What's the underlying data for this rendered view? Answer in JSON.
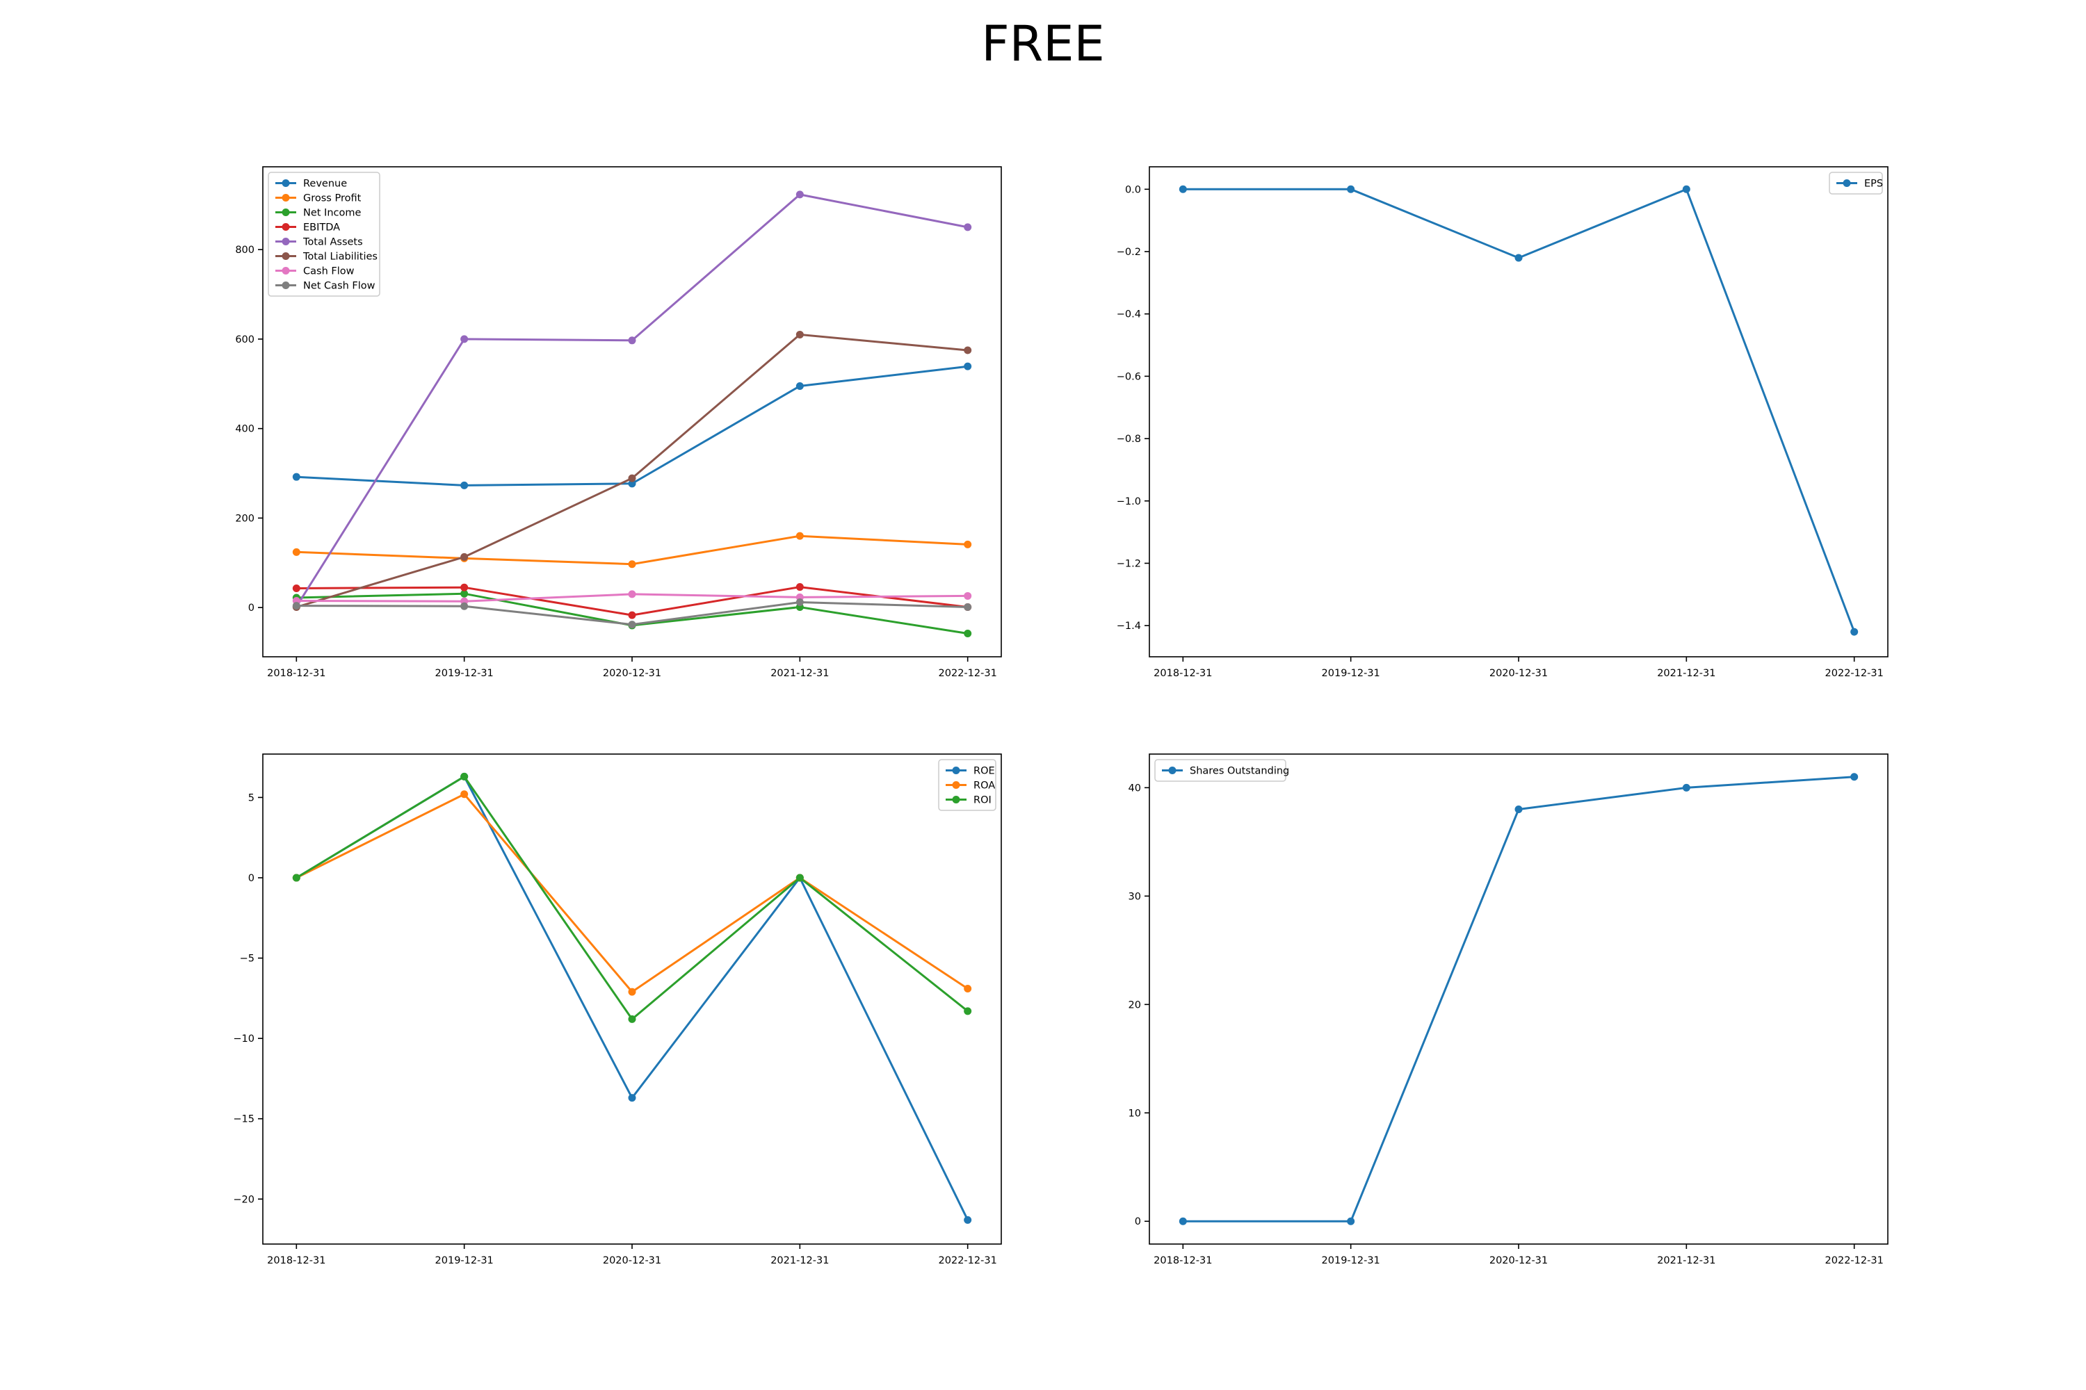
{
  "title": "FREE",
  "chart_data": [
    {
      "type": "line",
      "x": [
        "2018-12-31",
        "2019-12-31",
        "2020-12-31",
        "2021-12-31",
        "2022-12-31"
      ],
      "yticks": [
        0,
        200,
        400,
        600,
        800
      ],
      "ylim": [
        -110,
        985
      ],
      "legend_position": "upper left",
      "series": [
        {
          "name": "Revenue",
          "color": "#1f77b4",
          "values": [
            292,
            273,
            277,
            495,
            539
          ]
        },
        {
          "name": "Gross Profit",
          "color": "#ff7f0e",
          "values": [
            124,
            110,
            97,
            160,
            141
          ]
        },
        {
          "name": "Net Income",
          "color": "#2ca02c",
          "values": [
            22,
            31,
            -40,
            1,
            -58
          ]
        },
        {
          "name": "EBITDA",
          "color": "#d62728",
          "values": [
            43,
            45,
            -17,
            46,
            1
          ]
        },
        {
          "name": "Total Assets",
          "color": "#9467bd",
          "values": [
            2,
            600,
            597,
            923,
            850
          ]
        },
        {
          "name": "Total Liabilities",
          "color": "#8c564b",
          "values": [
            1,
            113,
            289,
            610,
            575
          ]
        },
        {
          "name": "Cash Flow",
          "color": "#e377c2",
          "values": [
            15,
            14,
            30,
            23,
            26
          ]
        },
        {
          "name": "Net Cash Flow",
          "color": "#7f7f7f",
          "values": [
            4,
            3,
            -38,
            12,
            1
          ]
        }
      ]
    },
    {
      "type": "line",
      "x": [
        "2018-12-31",
        "2019-12-31",
        "2020-12-31",
        "2021-12-31",
        "2022-12-31"
      ],
      "yticks": [
        0.0,
        -0.2,
        -0.4,
        -0.6,
        -0.8,
        -1.0,
        -1.2,
        -1.4
      ],
      "ytick_labels": [
        "0.0",
        "−0.2",
        "−0.4",
        "−0.6",
        "−0.8",
        "−1.0",
        "−1.2",
        "−1.4"
      ],
      "ylim": [
        -1.5,
        0.072
      ],
      "legend_position": "upper right",
      "series": [
        {
          "name": "EPS",
          "color": "#1f77b4",
          "values": [
            0.0,
            0.0,
            -0.22,
            0.0,
            -1.42
          ]
        }
      ]
    },
    {
      "type": "line",
      "x": [
        "2018-12-31",
        "2019-12-31",
        "2020-12-31",
        "2021-12-31",
        "2022-12-31"
      ],
      "yticks": [
        5,
        0,
        -5,
        -10,
        -15,
        -20
      ],
      "ytick_labels": [
        "5",
        "0",
        "−5",
        "−10",
        "−15",
        "−20"
      ],
      "ylim": [
        -22.8,
        7.7
      ],
      "legend_position": "upper right",
      "series": [
        {
          "name": "ROE",
          "color": "#1f77b4",
          "values": [
            0.0,
            6.3,
            -13.7,
            0.0,
            -21.3
          ]
        },
        {
          "name": "ROA",
          "color": "#ff7f0e",
          "values": [
            0.0,
            5.2,
            -7.1,
            0.0,
            -6.9
          ]
        },
        {
          "name": "ROI",
          "color": "#2ca02c",
          "values": [
            0.0,
            6.3,
            -8.8,
            0.0,
            -8.3
          ]
        }
      ]
    },
    {
      "type": "line",
      "x": [
        "2018-12-31",
        "2019-12-31",
        "2020-12-31",
        "2021-12-31",
        "2022-12-31"
      ],
      "yticks": [
        0,
        10,
        20,
        30,
        40
      ],
      "ytick_labels": [
        "0",
        "10",
        "20",
        "30",
        "40"
      ],
      "ylim": [
        -2.1,
        43.1
      ],
      "legend_position": "upper left",
      "series": [
        {
          "name": "Shares Outstanding",
          "color": "#1f77b4",
          "values": [
            0,
            0,
            38,
            40,
            41
          ]
        }
      ]
    }
  ]
}
